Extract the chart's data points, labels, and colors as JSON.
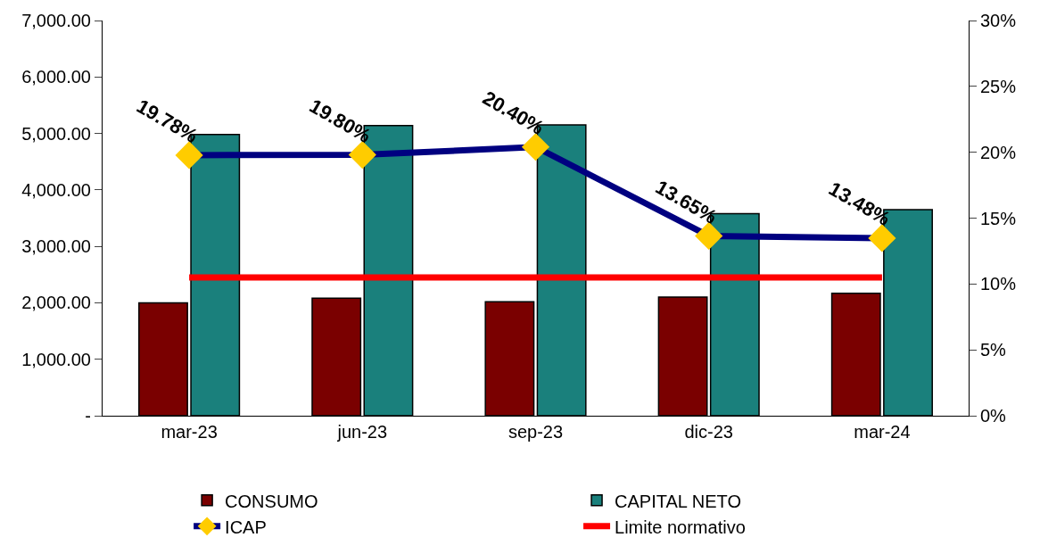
{
  "chart_data": {
    "type": "bar",
    "categories": [
      "mar-23",
      "jun-23",
      "sep-23",
      "dic-23",
      "mar-24"
    ],
    "series": [
      {
        "name": "CONSUMO",
        "color": "#7a0000",
        "values": [
          2000,
          2080,
          2020,
          2100,
          2170
        ]
      },
      {
        "name": "CAPITAL NETO",
        "color": "#1a807c",
        "values": [
          4980,
          5140,
          5150,
          3580,
          3650
        ]
      },
      {
        "name": "ICAP",
        "type": "line",
        "axis": "y2",
        "color": "#000080",
        "marker": "diamond",
        "values": [
          19.78,
          19.8,
          20.4,
          13.65,
          13.48
        ],
        "value_labels": [
          "19.78%",
          "19.80%",
          "20.40%",
          "13.65%",
          "13.48%"
        ]
      },
      {
        "name": "Limite normativo",
        "type": "line",
        "axis": "y2",
        "color": "#ff0000",
        "marker": "none",
        "values": [
          10.5,
          10.5,
          10.5,
          10.5,
          10.5
        ]
      }
    ],
    "ylim": [
      0,
      7000
    ],
    "yticks": [
      {
        "value": 0,
        "label": "-"
      },
      {
        "value": 1000,
        "label": "1,000.00"
      },
      {
        "value": 2000,
        "label": "2,000.00"
      },
      {
        "value": 3000,
        "label": "3,000.00"
      },
      {
        "value": 4000,
        "label": "4,000.00"
      },
      {
        "value": 5000,
        "label": "5,000.00"
      },
      {
        "value": 6000,
        "label": "6,000.00"
      },
      {
        "value": 7000,
        "label": "7,000.00"
      }
    ],
    "y2lim": [
      0,
      30
    ],
    "y2ticks": [
      {
        "value": 0,
        "label": "0%"
      },
      {
        "value": 5,
        "label": "5%"
      },
      {
        "value": 10,
        "label": "10%"
      },
      {
        "value": 15,
        "label": "15%"
      },
      {
        "value": 20,
        "label": "20%"
      },
      {
        "value": 25,
        "label": "25%"
      },
      {
        "value": 30,
        "label": "30%"
      }
    ],
    "legend": "bottom",
    "line_style": "solid"
  }
}
